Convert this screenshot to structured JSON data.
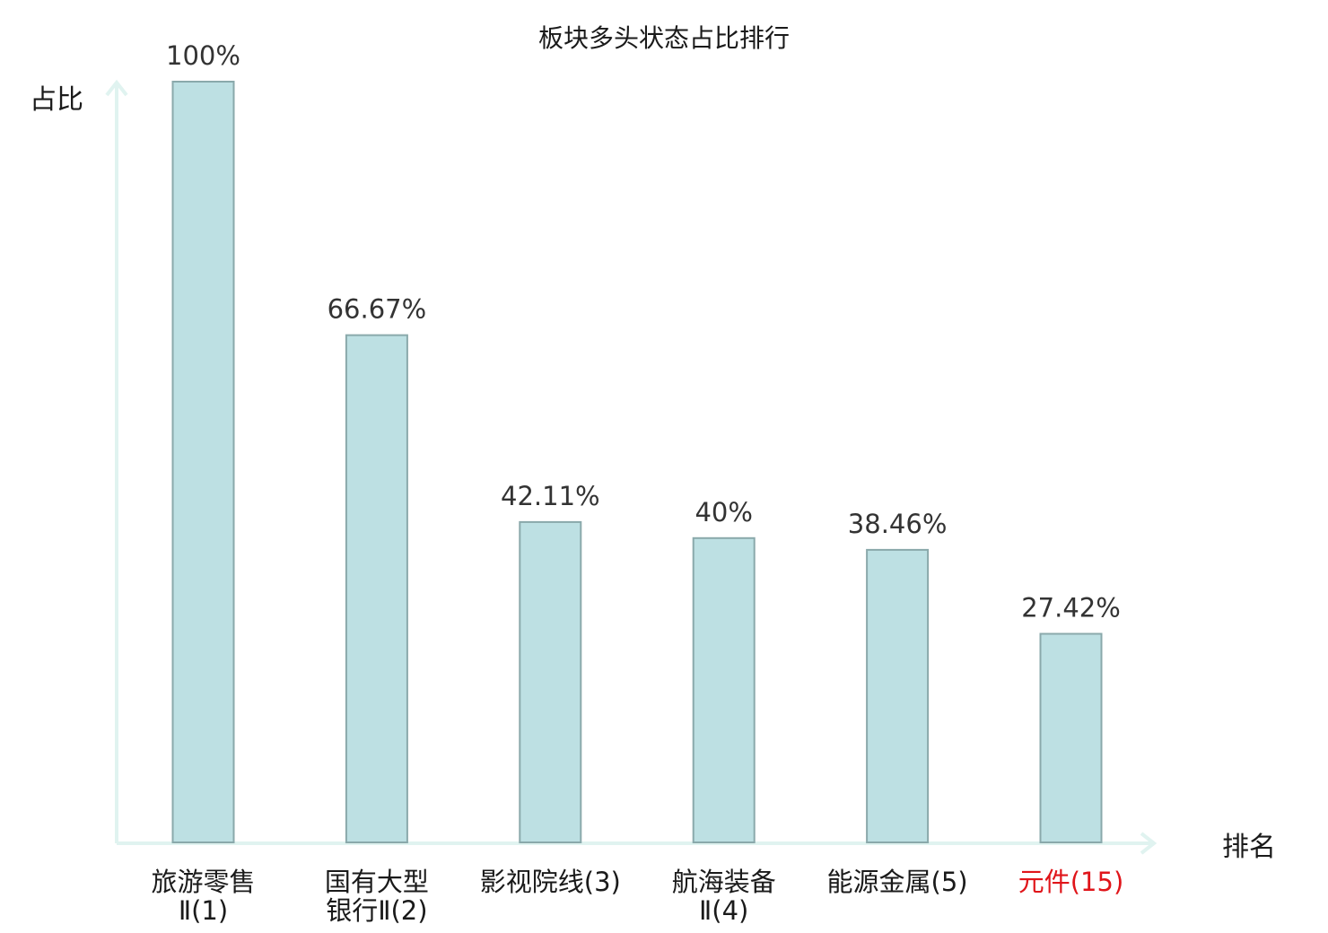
{
  "chart_data": {
    "type": "bar",
    "title": "板块多头状态占比排行",
    "xlabel": "排名",
    "ylabel": "占比",
    "ylim": [
      0,
      100
    ],
    "grid": false,
    "categories": [
      [
        "旅游零售",
        "Ⅱ(1)"
      ],
      [
        "国有大型",
        "银行Ⅱ(2)"
      ],
      [
        "影视院线(3)"
      ],
      [
        "航海装备",
        "Ⅱ(4)"
      ],
      [
        "能源金属(5)"
      ],
      [
        "元件(15)"
      ]
    ],
    "values": [
      100,
      66.67,
      42.11,
      40,
      38.46,
      27.42
    ],
    "value_labels": [
      "100%",
      "66.67%",
      "42.11%",
      "40%",
      "38.46%",
      "27.42%"
    ],
    "highlight_index": 5,
    "colors": {
      "bar_fill": "#bde0e3",
      "bar_stroke": "#8aa9ab",
      "axis": "#e0f3f0",
      "highlight_text": "#e0151a"
    }
  }
}
